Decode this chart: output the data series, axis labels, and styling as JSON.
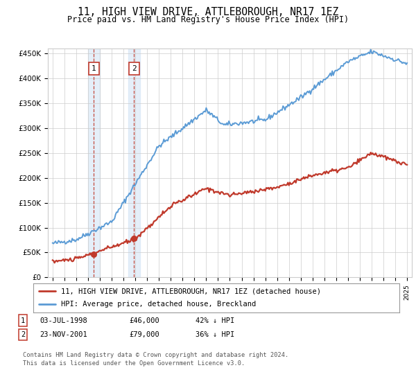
{
  "title": "11, HIGH VIEW DRIVE, ATTLEBOROUGH, NR17 1EZ",
  "subtitle": "Price paid vs. HM Land Registry's House Price Index (HPI)",
  "ylim": [
    0,
    460000
  ],
  "yticks": [
    0,
    50000,
    100000,
    150000,
    200000,
    250000,
    300000,
    350000,
    400000,
    450000
  ],
  "ytick_labels": [
    "£0",
    "£50K",
    "£100K",
    "£150K",
    "£200K",
    "£250K",
    "£300K",
    "£350K",
    "£400K",
    "£450K"
  ],
  "hpi_color": "#5b9bd5",
  "price_color": "#c0392b",
  "sale1_year": 1998.5,
  "sale1_price": 46000,
  "sale2_year": 2001.9,
  "sale2_price": 79000,
  "legend_line1": "11, HIGH VIEW DRIVE, ATTLEBOROUGH, NR17 1EZ (detached house)",
  "legend_line2": "HPI: Average price, detached house, Breckland",
  "background_color": "#ffffff",
  "grid_color": "#cccccc",
  "shade_color": "#cce0f5",
  "footnote_line1": "Contains HM Land Registry data © Crown copyright and database right 2024.",
  "footnote_line2": "This data is licensed under the Open Government Licence v3.0."
}
